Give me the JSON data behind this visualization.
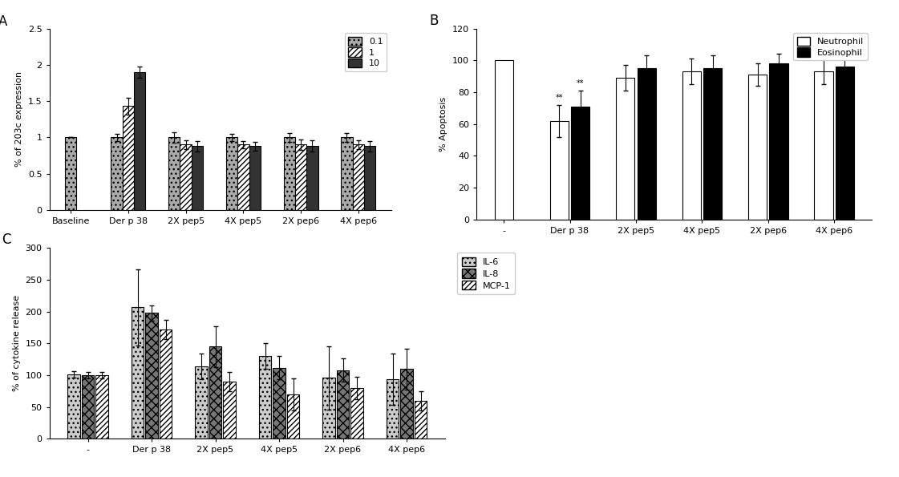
{
  "panel_A": {
    "categories": [
      "Baseline",
      "Der p 38",
      "2X pep5",
      "4X pep5",
      "2X pep6",
      "4X pep6"
    ],
    "series_labels": [
      "0.1",
      "1",
      "10"
    ],
    "values": [
      [
        1.0,
        1.0,
        1.0,
        1.0,
        1.0,
        1.0
      ],
      [
        null,
        1.43,
        0.9,
        0.9,
        0.9,
        0.9
      ],
      [
        null,
        1.9,
        0.88,
        0.88,
        0.88,
        0.88
      ]
    ],
    "errors": [
      [
        0.0,
        0.05,
        0.07,
        0.05,
        0.06,
        0.06
      ],
      [
        null,
        0.12,
        0.06,
        0.05,
        0.07,
        0.06
      ],
      [
        null,
        0.08,
        0.07,
        0.06,
        0.08,
        0.07
      ]
    ],
    "ylabel": "% of 203c expression",
    "ylim": [
      0.0,
      2.5
    ],
    "yticks": [
      0.0,
      0.5,
      1.0,
      1.5,
      2.0,
      2.5
    ],
    "panel_label": "A"
  },
  "panel_B": {
    "categories": [
      "-",
      "Der p 38",
      "2X pep5",
      "4X pep5",
      "2X pep6",
      "4X pep6"
    ],
    "series_labels": [
      "Neutrophil",
      "Eosinophil"
    ],
    "values": [
      [
        100,
        62,
        89,
        93,
        91,
        93
      ],
      [
        null,
        71,
        95,
        95,
        98,
        96
      ]
    ],
    "errors": [
      [
        0,
        10,
        8,
        8,
        7,
        8
      ],
      [
        null,
        10,
        8,
        8,
        6,
        7
      ]
    ],
    "ylabel": "% Apoptosis",
    "ylim": [
      0,
      120
    ],
    "yticks": [
      0,
      20,
      40,
      60,
      80,
      100,
      120
    ],
    "panel_label": "B"
  },
  "panel_C": {
    "categories": [
      "-",
      "Der p 38",
      "2X pep5",
      "4X pep5",
      "2X pep6",
      "4X pep6"
    ],
    "series_labels": [
      "IL-6",
      "IL-8",
      "MCP-1"
    ],
    "values": [
      [
        101,
        207,
        114,
        130,
        96,
        94
      ],
      [
        100,
        198,
        145,
        112,
        108,
        110
      ],
      [
        100,
        172,
        90,
        70,
        80,
        60
      ]
    ],
    "errors": [
      [
        5,
        60,
        20,
        20,
        50,
        40
      ],
      [
        5,
        12,
        32,
        18,
        18,
        32
      ],
      [
        5,
        15,
        15,
        25,
        18,
        15
      ]
    ],
    "ylabel": "% of cytokine release",
    "ylim": [
      0,
      300
    ],
    "yticks": [
      0,
      50,
      100,
      150,
      200,
      250,
      300
    ],
    "panel_label": "C"
  },
  "background_color": "#ffffff",
  "bar_width": 0.2,
  "fontsize": 8,
  "title_fontsize": 10
}
